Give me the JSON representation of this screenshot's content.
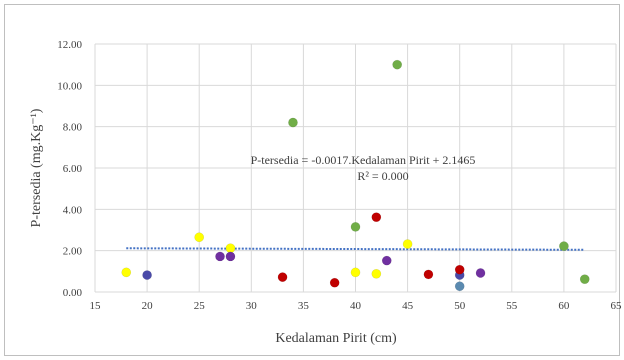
{
  "chart_data": {
    "type": "scatter",
    "xlabel": "Kedalaman Pirit (cm)",
    "ylabel": "P-tersedia (mg.Kg⁻¹)",
    "xlim": [
      15,
      65
    ],
    "ylim": [
      0,
      12
    ],
    "x_ticks": [
      "15",
      "20",
      "25",
      "30",
      "35",
      "40",
      "45",
      "50",
      "55",
      "60",
      "65"
    ],
    "y_ticks": [
      "0.00",
      "2.00",
      "4.00",
      "6.00",
      "8.00",
      "10.00",
      "12.00"
    ],
    "grid": true,
    "equation": "P-tersedia = -0.0017.Kedalaman  Pirit + 2.1465",
    "r_squared": "R² = 0.000",
    "trendline": {
      "slope": -0.0017,
      "intercept": 2.1465,
      "x_range": [
        18,
        62
      ],
      "color": "#4472c4"
    },
    "series": [
      {
        "color": "#ffff00",
        "points": [
          [
            18,
            0.95
          ],
          [
            25,
            2.65
          ],
          [
            28,
            2.12
          ],
          [
            40,
            0.95
          ],
          [
            42,
            0.88
          ],
          [
            45,
            2.32
          ]
        ]
      },
      {
        "color": "#4a4aa8",
        "points": [
          [
            20,
            0.82
          ],
          [
            50,
            0.82
          ]
        ]
      },
      {
        "color": "#7030a0",
        "points": [
          [
            27,
            1.72
          ],
          [
            28,
            1.72
          ],
          [
            43,
            1.52
          ],
          [
            52,
            0.92
          ]
        ]
      },
      {
        "color": "#c00000",
        "points": [
          [
            33,
            0.72
          ],
          [
            38,
            0.45
          ],
          [
            42,
            3.62
          ],
          [
            47,
            0.85
          ],
          [
            50,
            1.08
          ]
        ]
      },
      {
        "color": "#70ad47",
        "points": [
          [
            34,
            8.2
          ],
          [
            40,
            3.15
          ],
          [
            44,
            11.0
          ],
          [
            60,
            2.22
          ],
          [
            62,
            0.62
          ]
        ]
      },
      {
        "color": "#5b8ab0",
        "points": [
          [
            50,
            0.28
          ]
        ]
      }
    ]
  }
}
